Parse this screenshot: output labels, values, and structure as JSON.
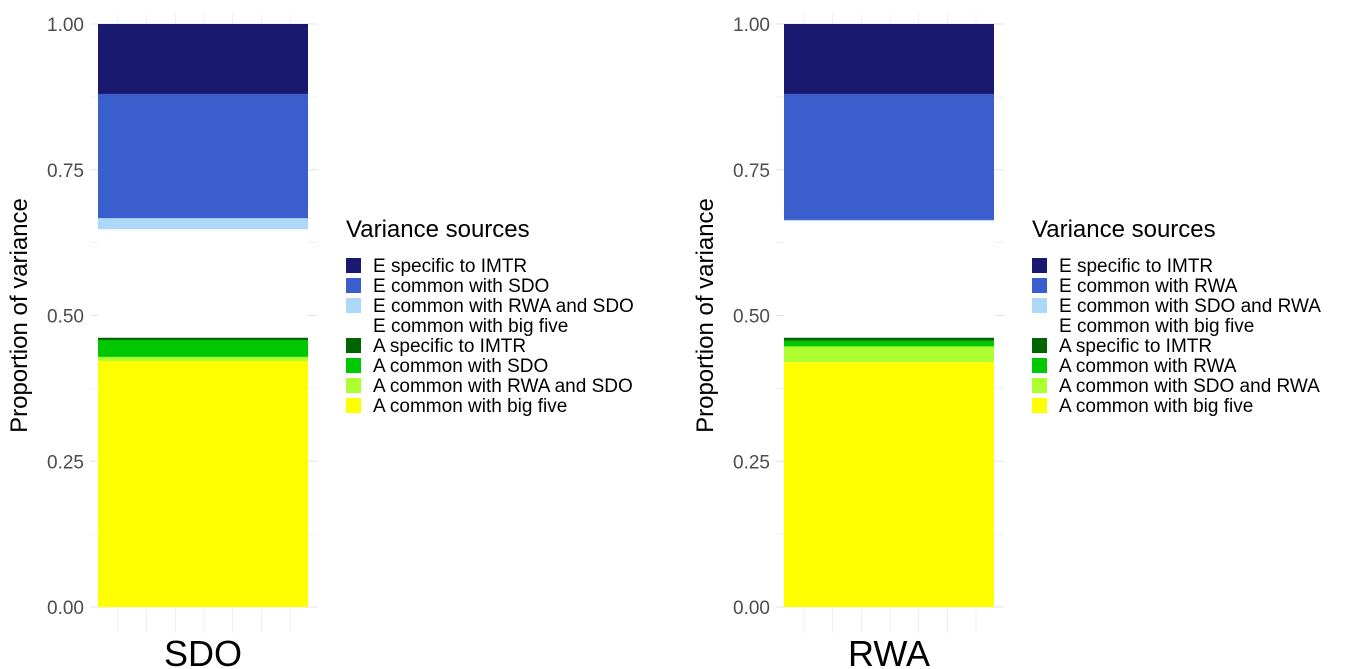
{
  "chart_data": [
    {
      "type": "bar",
      "stacked": true,
      "categories": [
        "SDO"
      ],
      "ylabel": "Proportion of variance",
      "ylim": [
        0,
        1
      ],
      "yticks": [
        "0.00",
        "0.25",
        "0.50",
        "0.75",
        "1.00"
      ],
      "grid": true,
      "legend": {
        "title": "Variance sources",
        "placement": "right",
        "entries": [
          {
            "label": "A common with big five",
            "color": "#FFFF00"
          },
          {
            "label": "A common with RWA and SDO",
            "color": "#ADFF2F"
          },
          {
            "label": "A common with SDO",
            "color": "#00C800"
          },
          {
            "label": "A specific to IMTR",
            "color": "#006400"
          },
          {
            "label": "E common with big five",
            "color": "#FFFFFF"
          },
          {
            "label": "E common with RWA and SDO",
            "color": "#ADD8F7"
          },
          {
            "label": "E common with SDO",
            "color": "#3A5FCD"
          },
          {
            "label": "E specific to IMTR",
            "color": "#191970"
          }
        ]
      },
      "series": [
        {
          "values": [
            0.422
          ]
        },
        {
          "values": [
            0.007
          ]
        },
        {
          "values": [
            0.029
          ]
        },
        {
          "values": [
            0.004
          ]
        },
        {
          "values": [
            0.186
          ]
        },
        {
          "values": [
            0.019
          ]
        },
        {
          "values": [
            0.213
          ]
        },
        {
          "values": [
            0.12
          ]
        }
      ]
    },
    {
      "type": "bar",
      "stacked": true,
      "categories": [
        "RWA"
      ],
      "ylabel": "Proportion of variance",
      "ylim": [
        0,
        1
      ],
      "yticks": [
        "0.00",
        "0.25",
        "0.50",
        "0.75",
        "1.00"
      ],
      "grid": true,
      "legend": {
        "title": "Variance sources",
        "placement": "right",
        "entries": [
          {
            "label": "A common with big five",
            "color": "#FFFF00"
          },
          {
            "label": "A common with SDO and RWA",
            "color": "#ADFF2F"
          },
          {
            "label": "A common with RWA",
            "color": "#00C800"
          },
          {
            "label": "A specific to IMTR",
            "color": "#006400"
          },
          {
            "label": "E common with big five",
            "color": "#FFFFFF"
          },
          {
            "label": "E common with SDO and RWA",
            "color": "#ADD8F7"
          },
          {
            "label": "E common with RWA",
            "color": "#3A5FCD"
          },
          {
            "label": "E specific to IMTR",
            "color": "#191970"
          }
        ]
      },
      "series": [
        {
          "values": [
            0.42
          ]
        },
        {
          "values": [
            0.027
          ]
        },
        {
          "values": [
            0.01
          ]
        },
        {
          "values": [
            0.005
          ]
        },
        {
          "values": [
            0.2
          ]
        },
        {
          "values": [
            0.002
          ]
        },
        {
          "values": [
            0.216
          ]
        },
        {
          "values": [
            0.12
          ]
        }
      ]
    }
  ]
}
